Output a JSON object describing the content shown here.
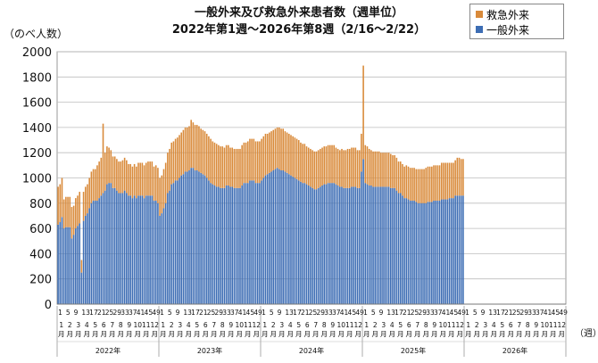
{
  "chart_data": {
    "type": "bar",
    "stacked": true,
    "title": "一般外来及び救急外来患者数（週単位）",
    "subtitle": "2022年第1週〜2026年第8週（2/16〜2/22）",
    "ylabel": "（のべ人数）",
    "xunit": "（週）",
    "ylim": [
      0,
      2000
    ],
    "yticks": [
      0,
      200,
      400,
      600,
      800,
      1000,
      1200,
      1400,
      1600,
      1800,
      2000
    ],
    "grid": true,
    "legend_position": "top-right",
    "colors": {
      "emergency": "#d98a3a",
      "general": "#3d6db4"
    },
    "years": [
      {
        "label": "2022年",
        "weeks": 52
      },
      {
        "label": "2023年",
        "weeks": 52
      },
      {
        "label": "2024年",
        "weeks": 52
      },
      {
        "label": "2025年",
        "weeks": 52
      },
      {
        "label": "2026年",
        "weeks": 52
      }
    ],
    "week_tick_labels": [
      "1",
      "5",
      "9",
      "13",
      "17",
      "21",
      "25",
      "29",
      "33",
      "37",
      "41",
      "45",
      "49"
    ],
    "month_labels": [
      "1月",
      "2月",
      "3月",
      "4月",
      "5月",
      "6月",
      "7月",
      "8月",
      "9月",
      "10月",
      "11月",
      "12月"
    ],
    "series": [
      {
        "name": "救急外来",
        "values": [
          300,
          300,
          310,
          230,
          240,
          240,
          240,
          250,
          230,
          240,
          240,
          250,
          100,
          230,
          230,
          230,
          240,
          250,
          250,
          250,
          280,
          290,
          300,
          550,
          300,
          300,
          280,
          260,
          250,
          250,
          250,
          250,
          250,
          260,
          260,
          260,
          250,
          250,
          250,
          250,
          250,
          260,
          260,
          260,
          260,
          260,
          270,
          270,
          270,
          270,
          280,
          280,
          300,
          300,
          310,
          320,
          320,
          330,
          330,
          330,
          330,
          340,
          340,
          340,
          350,
          350,
          350,
          350,
          380,
          360,
          360,
          360,
          360,
          350,
          350,
          350,
          350,
          350,
          350,
          340,
          340,
          340,
          330,
          330,
          330,
          320,
          320,
          320,
          310,
          310,
          310,
          310,
          310,
          310,
          320,
          320,
          320,
          330,
          330,
          330,
          330,
          330,
          330,
          330,
          330,
          330,
          330,
          320,
          320,
          320,
          320,
          320,
          320,
          330,
          330,
          330,
          320,
          320,
          320,
          320,
          320,
          320,
          320,
          320,
          310,
          310,
          310,
          300,
          300,
          300,
          300,
          300,
          300,
          300,
          300,
          300,
          300,
          300,
          300,
          300,
          300,
          300,
          290,
          290,
          290,
          300,
          300,
          300,
          310,
          310,
          310,
          310,
          310,
          300,
          300,
          300,
          740,
          300,
          300,
          290,
          280,
          280,
          280,
          280,
          280,
          270,
          270,
          270,
          270,
          270,
          270,
          260,
          260,
          260,
          250,
          250,
          250,
          250,
          260,
          260,
          260,
          260,
          260,
          260,
          270,
          270,
          270,
          270,
          280,
          280,
          280,
          280,
          280,
          280,
          280,
          280,
          290,
          290,
          290,
          290,
          280,
          280,
          280,
          280,
          300,
          300,
          290,
          290
        ]
      },
      {
        "name": "一般外来",
        "values": [
          630,
          650,
          690,
          600,
          610,
          610,
          610,
          520,
          550,
          600,
          620,
          640,
          250,
          660,
          700,
          720,
          760,
          800,
          820,
          820,
          820,
          840,
          860,
          880,
          900,
          950,
          960,
          960,
          920,
          920,
          900,
          880,
          880,
          880,
          900,
          880,
          860,
          860,
          840,
          860,
          840,
          860,
          860,
          860,
          840,
          860,
          860,
          860,
          860,
          820,
          820,
          800,
          700,
          720,
          760,
          800,
          880,
          900,
          950,
          960,
          980,
          980,
          1000,
          1020,
          1030,
          1050,
          1050,
          1060,
          1080,
          1080,
          1060,
          1060,
          1050,
          1040,
          1030,
          1020,
          1000,
          980,
          960,
          950,
          940,
          930,
          930,
          920,
          920,
          920,
          940,
          940,
          930,
          930,
          920,
          920,
          920,
          920,
          940,
          960,
          960,
          960,
          980,
          980,
          980,
          960,
          960,
          960,
          980,
          1000,
          1020,
          1030,
          1040,
          1050,
          1060,
          1070,
          1080,
          1070,
          1060,
          1060,
          1050,
          1040,
          1030,
          1020,
          1010,
          1000,
          990,
          980,
          970,
          960,
          960,
          950,
          940,
          930,
          920,
          910,
          910,
          920,
          930,
          940,
          950,
          950,
          960,
          960,
          960,
          960,
          950,
          940,
          930,
          930,
          920,
          920,
          920,
          920,
          930,
          930,
          930,
          920,
          920,
          1050,
          1150,
          960,
          950,
          940,
          940,
          930,
          930,
          930,
          930,
          930,
          930,
          930,
          930,
          930,
          920,
          920,
          920,
          900,
          880,
          880,
          860,
          840,
          840,
          830,
          820,
          820,
          820,
          810,
          800,
          800,
          800,
          800,
          800,
          810,
          810,
          810,
          820,
          820,
          820,
          820,
          830,
          830,
          830,
          830,
          840,
          840,
          840,
          860,
          860,
          860,
          860,
          860
        ]
      }
    ]
  }
}
